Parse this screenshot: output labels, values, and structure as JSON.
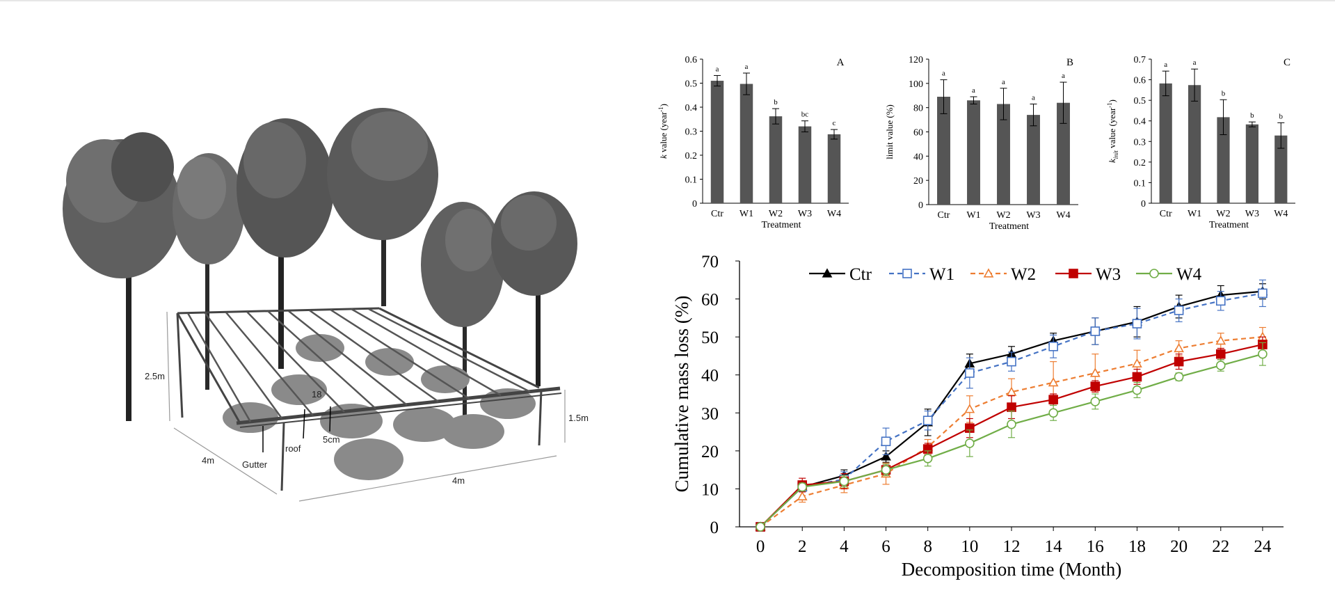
{
  "colors": {
    "bar_fill": "#555555",
    "axis": "#000000",
    "Ctr": "#000000",
    "W1": "#4472C4",
    "W2": "#ED7D31",
    "W3": "#C00000",
    "W4": "#70AD47"
  },
  "diagram": {
    "labels": {
      "height_left": "2.5m",
      "height_right": "1.5m",
      "depth": "4m",
      "width": "4m",
      "gutter": "Gutter",
      "roof": "roof",
      "spacing": "5cm",
      "count": "18"
    }
  },
  "chart_data": [
    {
      "type": "bar",
      "panel": "A",
      "categories": [
        "Ctr",
        "W1",
        "W2",
        "W3",
        "W4"
      ],
      "values": [
        0.51,
        0.497,
        0.362,
        0.32,
        0.287
      ],
      "errors": [
        0.022,
        0.045,
        0.032,
        0.023,
        0.02
      ],
      "letters": [
        "a",
        "a",
        "b",
        "bc",
        "c"
      ],
      "ylabel_prefix": "k",
      "ylabel_main": " value (year",
      "ylabel_sup": "-1",
      "ylabel_close": ")",
      "xlabel": "Treatment",
      "ylim": [
        0,
        0.6
      ],
      "yticks": [
        "0",
        "0.1",
        "0.2",
        "0.3",
        "0.4",
        "0.5",
        "0.6"
      ]
    },
    {
      "type": "bar",
      "panel": "B",
      "categories": [
        "Ctr",
        "W1",
        "W2",
        "W3",
        "W4"
      ],
      "values": [
        89,
        86,
        83,
        74,
        84
      ],
      "errors": [
        14,
        3,
        13,
        9,
        17
      ],
      "letters": [
        "a",
        "a",
        "a",
        "a",
        "a"
      ],
      "ylabel_prefix": "",
      "ylabel_main": "limit value (%)",
      "ylabel_sup": "",
      "ylabel_close": "",
      "xlabel": "Treatment",
      "ylim": [
        0,
        120
      ],
      "yticks": [
        "0",
        "20",
        "40",
        "60",
        "80",
        "100",
        "120"
      ]
    },
    {
      "type": "bar",
      "panel": "C",
      "categories": [
        "Ctr",
        "W1",
        "W2",
        "W3",
        "W4"
      ],
      "values": [
        0.582,
        0.574,
        0.418,
        0.383,
        0.329
      ],
      "errors": [
        0.06,
        0.078,
        0.085,
        0.012,
        0.062
      ],
      "letters": [
        "a",
        "a",
        "b",
        "b",
        "b"
      ],
      "ylabel_prefix": "k",
      "ylabel_sub": "init",
      "ylabel_main": " value (year",
      "ylabel_sup": "-1",
      "ylabel_close": ")",
      "xlabel": "Treatment",
      "ylim": [
        0,
        0.7
      ],
      "yticks": [
        "0",
        "0.1",
        "0.2",
        "0.3",
        "0.4",
        "0.5",
        "0.6",
        "0.7"
      ]
    },
    {
      "type": "line",
      "x": [
        0,
        2,
        4,
        6,
        8,
        10,
        12,
        14,
        16,
        18,
        20,
        22,
        24
      ],
      "xticks": [
        "0",
        "2",
        "4",
        "6",
        "8",
        "10",
        "12",
        "14",
        "16",
        "18",
        "20",
        "22",
        "24"
      ],
      "yticks": [
        "0",
        "10",
        "20",
        "30",
        "40",
        "50",
        "60",
        "70"
      ],
      "xlabel": "Decomposition time (Month)",
      "ylabel": "Cumulative mass loss (%)",
      "xlim": [
        -1,
        25
      ],
      "ylim": [
        0,
        70
      ],
      "legend": "top",
      "series": [
        {
          "name": "Ctr",
          "marker": "triangle-filled",
          "dash": "solid",
          "values": [
            0,
            10.5,
            13.5,
            18.5,
            27.5,
            43,
            45.5,
            49,
            51.5,
            54,
            58,
            61,
            62
          ],
          "errors": [
            0,
            1.2,
            1.5,
            1.5,
            3.5,
            2.5,
            2,
            2,
            3.5,
            4,
            3,
            2.5,
            2
          ]
        },
        {
          "name": "W1",
          "marker": "square-open",
          "dash": "dashed",
          "values": [
            0,
            10.5,
            12.5,
            22.5,
            28,
            40.5,
            43.5,
            47.5,
            51.5,
            53.5,
            57,
            59.5,
            61.5
          ],
          "errors": [
            0,
            1.3,
            2,
            3.5,
            2.5,
            4,
            2.5,
            3,
            3.5,
            4,
            3,
            2.5,
            3.5
          ]
        },
        {
          "name": "W2",
          "marker": "triangle-open",
          "dash": "dashed",
          "values": [
            0,
            8,
            11,
            14,
            21,
            31,
            35.5,
            38,
            40.5,
            43,
            47,
            49,
            50
          ],
          "errors": [
            0,
            1.5,
            2,
            2.8,
            2,
            3.5,
            3.5,
            5.5,
            5,
            3.5,
            2,
            2,
            2.5
          ]
        },
        {
          "name": "W3",
          "marker": "square-filled",
          "dash": "solid",
          "values": [
            0,
            11,
            12,
            15,
            20.5,
            26,
            31.5,
            33.5,
            37,
            39.5,
            43.5,
            45.5,
            48
          ],
          "errors": [
            0,
            1.8,
            2,
            1.5,
            1.5,
            2.5,
            3,
            1.5,
            1.5,
            2,
            2,
            1.5,
            2
          ]
        },
        {
          "name": "W4",
          "marker": "circle-open",
          "dash": "solid",
          "values": [
            0,
            10.5,
            12,
            15,
            18,
            22,
            27,
            30,
            33,
            36,
            39.5,
            42.5,
            45.5
          ],
          "errors": [
            0,
            1,
            1.5,
            1.5,
            2,
            3.5,
            3.5,
            2,
            2,
            2,
            1,
            1.5,
            3
          ]
        }
      ]
    }
  ]
}
